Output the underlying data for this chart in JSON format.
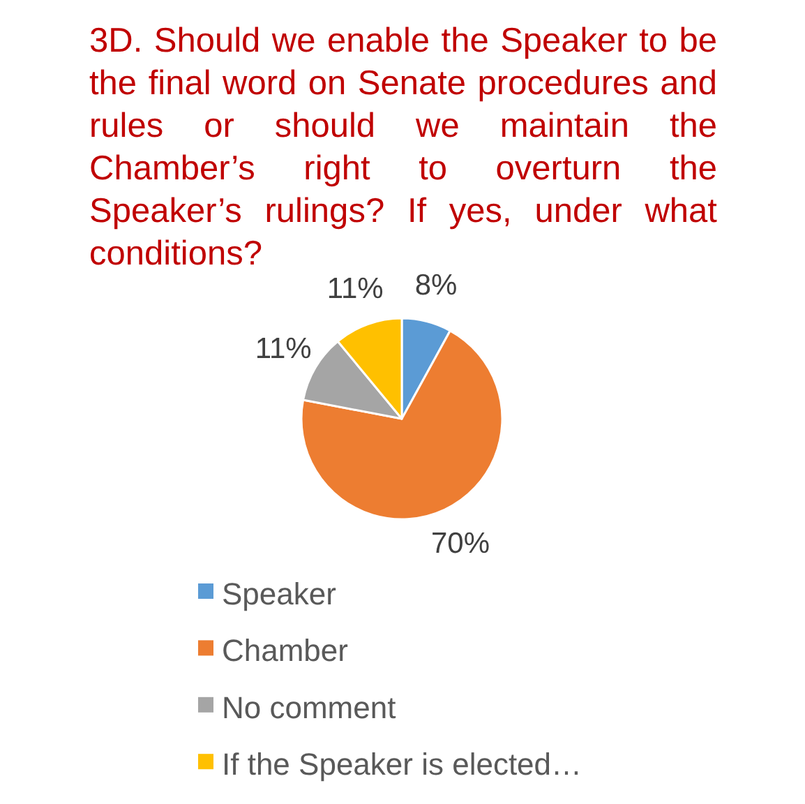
{
  "chart_data": {
    "type": "pie",
    "title": "3D. Should we enable the Speaker to be the final word on Senate procedures and rules or should we maintain the Chamber’s right to overturn the Speaker’s rulings? If yes, under what conditions?",
    "categories": [
      "Speaker",
      "Chamber",
      "No comment",
      "If the Speaker is elected…"
    ],
    "values": [
      8,
      70,
      11,
      11
    ],
    "colors": [
      "#5b9bd5",
      "#ed7d31",
      "#a5a5a5",
      "#ffc000"
    ],
    "value_labels": [
      "8%",
      "70%",
      "11%",
      "11%"
    ],
    "legend": "bottom"
  }
}
